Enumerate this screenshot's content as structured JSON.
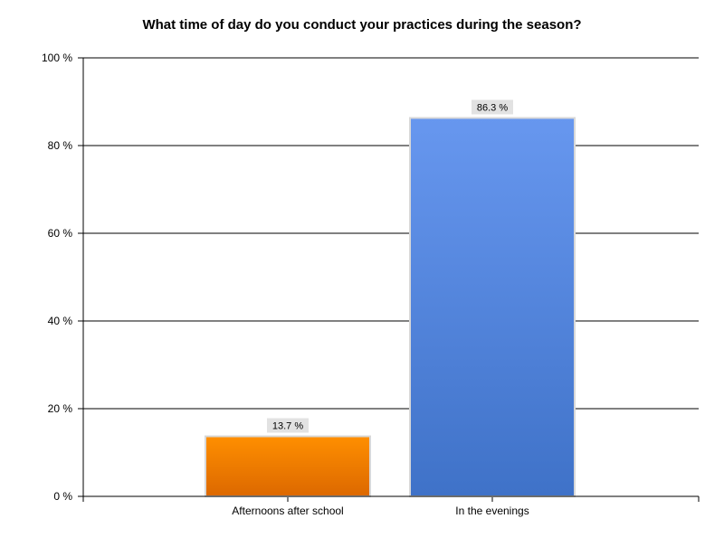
{
  "chart_data": {
    "type": "bar",
    "title": "What time of day do you conduct your practices during the season?",
    "categories": [
      "Afternoons after school",
      "In the evenings"
    ],
    "values": [
      13.7,
      86.3
    ],
    "data_labels": [
      "13.7 %",
      "86.3 %"
    ],
    "colors": [
      "#f08400",
      "#5585dc"
    ],
    "ylim": [
      0,
      100
    ],
    "yticks": [
      0,
      20,
      40,
      60,
      80,
      100
    ],
    "ytick_labels": [
      "0 %",
      "20 %",
      "40 %",
      "60 %",
      "80 %",
      "100 %"
    ],
    "grid": true,
    "legend": "none"
  }
}
